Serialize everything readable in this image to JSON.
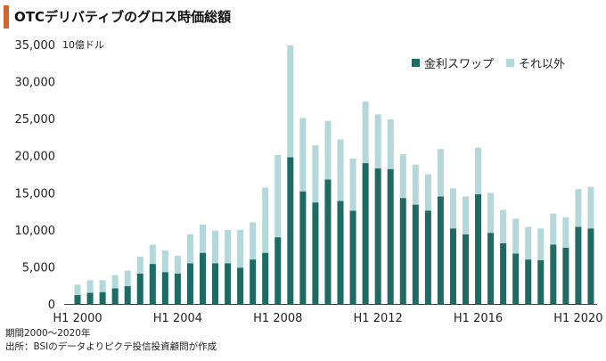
{
  "title": "OTCデリバティブのグロス時価総額",
  "notes": {
    "period": "期間2000～2020年",
    "source": "出所：BSIのデータよりピクテ投信投資顧問が作成"
  },
  "colors": {
    "interest_rate_swaps": "#1e6b64",
    "other": "#b4d7da"
  },
  "chart_data": {
    "type": "bar",
    "stacked": true,
    "unit_label": "10億ドル",
    "ylim": [
      0,
      35000
    ],
    "yticks": [
      0,
      5000,
      10000,
      15000,
      20000,
      25000,
      30000,
      35000
    ],
    "ytick_labels": [
      "0",
      "5,000",
      "10,000",
      "15,000",
      "20,000",
      "25,000",
      "30,000",
      "35,000"
    ],
    "xtick_labels": [
      "H1 2000",
      "H1 2004",
      "H1 2008",
      "H1 2012",
      "H1 2016",
      "H1 2020"
    ],
    "xtick_indices": [
      0,
      8,
      16,
      24,
      32,
      40
    ],
    "categories": [
      "H1 2000",
      "H2 2000",
      "H1 2001",
      "H2 2001",
      "H1 2002",
      "H2 2002",
      "H1 2003",
      "H2 2003",
      "H1 2004",
      "H2 2004",
      "H1 2005",
      "H2 2005",
      "H1 2006",
      "H2 2006",
      "H1 2007",
      "H2 2007",
      "H1 2008",
      "H2 2008",
      "H1 2009",
      "H2 2009",
      "H1 2010",
      "H2 2010",
      "H1 2011",
      "H2 2011",
      "H1 2012",
      "H2 2012",
      "H1 2013",
      "H2 2013",
      "H1 2014",
      "H2 2014",
      "H1 2015",
      "H2 2015",
      "H1 2016",
      "H2 2016",
      "H1 2017",
      "H2 2017",
      "H1 2018",
      "H2 2018",
      "H1 2019",
      "H2 2019",
      "H1 2020",
      "H2 2020"
    ],
    "legend_position": "top-right",
    "grid": false,
    "series": [
      {
        "name": "金利スワップ",
        "values": [
          1200,
          1500,
          1600,
          2100,
          2400,
          4100,
          5400,
          4300,
          4100,
          5500,
          6900,
          5500,
          5500,
          4900,
          6000,
          6900,
          9000,
          19800,
          15200,
          13700,
          16800,
          13900,
          12600,
          19000,
          18300,
          18200,
          14300,
          13400,
          12600,
          14500,
          10200,
          9400,
          14800,
          9600,
          8200,
          6800,
          6000,
          5900,
          8000,
          7600,
          10400,
          10200
        ]
      },
      {
        "name": "それ以外",
        "values": [
          1400,
          1700,
          1600,
          1800,
          2100,
          2300,
          2600,
          2900,
          2400,
          3900,
          3800,
          4400,
          4500,
          5100,
          5000,
          8800,
          11100,
          15100,
          9900,
          7700,
          7900,
          8300,
          7000,
          8300,
          7300,
          6700,
          5900,
          5400,
          4900,
          6400,
          5400,
          5100,
          6300,
          5400,
          4500,
          4700,
          4400,
          4300,
          4200,
          4100,
          5100,
          5600
        ]
      }
    ]
  }
}
